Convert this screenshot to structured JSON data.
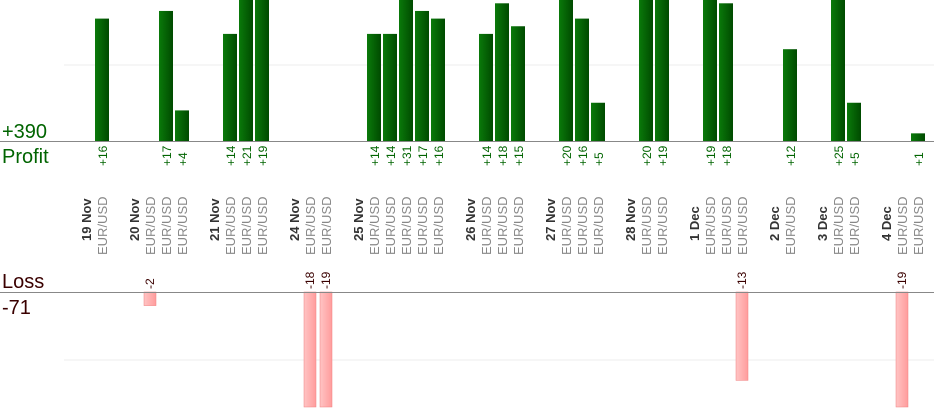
{
  "chart_data": {
    "type": "bar",
    "profit": {
      "label": "Profit",
      "total": "+390",
      "color": "#006400"
    },
    "loss": {
      "label": "Loss",
      "total": "-71",
      "color": "#ffb0b0",
      "text_color": "#3a0000"
    },
    "groups": [
      {
        "date": "19 Nov",
        "trades": [
          {
            "pair": "EUR/USD",
            "value": 16
          }
        ]
      },
      {
        "date": "20 Nov",
        "trades": [
          {
            "pair": "EUR/USD",
            "value": -2
          },
          {
            "pair": "EUR/USD",
            "value": 17
          },
          {
            "pair": "EUR/USD",
            "value": 4
          }
        ]
      },
      {
        "date": "21 Nov",
        "trades": [
          {
            "pair": "EUR/USD",
            "value": 14
          },
          {
            "pair": "EUR/USD",
            "value": 21
          },
          {
            "pair": "EUR/USD",
            "value": 19
          }
        ]
      },
      {
        "date": "24 Nov",
        "trades": [
          {
            "pair": "EUR/USD",
            "value": -18
          },
          {
            "pair": "EUR/USD",
            "value": -19
          }
        ]
      },
      {
        "date": "25 Nov",
        "trades": [
          {
            "pair": "EUR/USD",
            "value": 14
          },
          {
            "pair": "EUR/USD",
            "value": 14
          },
          {
            "pair": "EUR/USD",
            "value": 31
          },
          {
            "pair": "EUR/USD",
            "value": 17
          },
          {
            "pair": "EUR/USD",
            "value": 16
          }
        ]
      },
      {
        "date": "26 Nov",
        "trades": [
          {
            "pair": "EUR/USD",
            "value": 14
          },
          {
            "pair": "EUR/USD",
            "value": 18
          },
          {
            "pair": "EUR/USD",
            "value": 15
          }
        ]
      },
      {
        "date": "27 Nov",
        "trades": [
          {
            "pair": "EUR/USD",
            "value": 20
          },
          {
            "pair": "EUR/USD",
            "value": 16
          },
          {
            "pair": "EUR/USD",
            "value": 5
          }
        ]
      },
      {
        "date": "28 Nov",
        "trades": [
          {
            "pair": "EUR/USD",
            "value": 20
          },
          {
            "pair": "EUR/USD",
            "value": 19
          }
        ]
      },
      {
        "date": "1 Dec",
        "trades": [
          {
            "pair": "EUR/USD",
            "value": 19
          },
          {
            "pair": "EUR/USD",
            "value": 18
          },
          {
            "pair": "EUR/USD",
            "value": -13
          }
        ]
      },
      {
        "date": "2 Dec",
        "trades": [
          {
            "pair": "EUR/USD",
            "value": 12
          }
        ]
      },
      {
        "date": "3 Dec",
        "trades": [
          {
            "pair": "EUR/USD",
            "value": 25
          },
          {
            "pair": "EUR/USD",
            "value": 5
          }
        ]
      },
      {
        "date": "4 Dec",
        "trades": [
          {
            "pair": "EUR/USD",
            "value": -19
          },
          {
            "pair": "EUR/USD",
            "value": 1
          }
        ]
      }
    ]
  }
}
